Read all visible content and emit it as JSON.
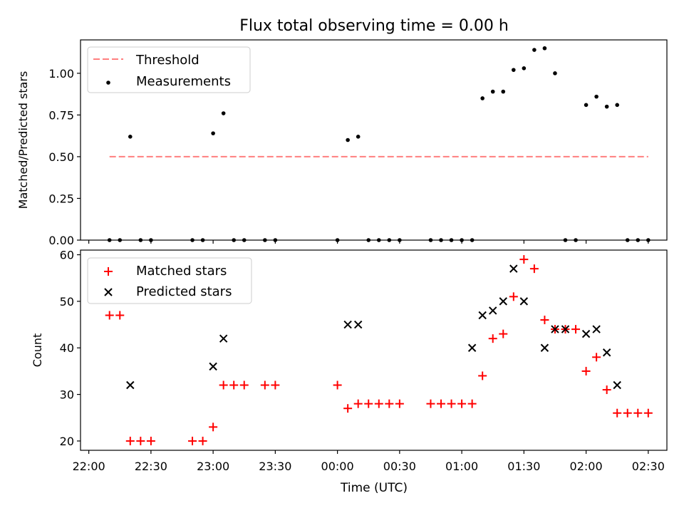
{
  "chart_data": [
    {
      "type": "scatter",
      "title": "Flux total observing time = 0.00 h",
      "xlabel": "",
      "ylabel": "Matched/Predicted stars",
      "x_unit": "minutes since 22:00 UTC",
      "xlim": [
        -4,
        279
      ],
      "ylim": [
        0,
        1.2
      ],
      "yticks": [
        0.0,
        0.25,
        0.5,
        0.75,
        1.0
      ],
      "ytick_labels": [
        "0.00",
        "0.25",
        "0.50",
        "0.75",
        "1.00"
      ],
      "legend_position": "upper left",
      "series": [
        {
          "name": "Threshold",
          "kind": "line",
          "style": "dashed",
          "color": "#ff7f7f",
          "x": [
            10,
            270
          ],
          "y": [
            0.5,
            0.5
          ]
        },
        {
          "name": "Measurements",
          "kind": "scatter",
          "marker": "dot",
          "color": "#000000",
          "x": [
            10,
            15,
            20,
            25,
            30,
            50,
            55,
            60,
            65,
            70,
            75,
            85,
            90,
            120,
            125,
            130,
            135,
            140,
            145,
            150,
            165,
            170,
            175,
            180,
            185,
            190,
            195,
            200,
            205,
            210,
            215,
            220,
            225,
            230,
            235,
            240,
            245,
            250,
            255,
            260,
            265,
            270
          ],
          "y": [
            0,
            0,
            0.62,
            0,
            0,
            0,
            0,
            0.64,
            0.76,
            0,
            0,
            0,
            0,
            0,
            0.6,
            0.62,
            0,
            0,
            0,
            0,
            0,
            0,
            0,
            0,
            0,
            0.85,
            0.89,
            0.89,
            1.02,
            1.03,
            1.14,
            1.15,
            1.0,
            0,
            0,
            0.81,
            0.86,
            0.8,
            0.81,
            0,
            0,
            0
          ]
        }
      ]
    },
    {
      "type": "scatter",
      "title": "",
      "xlabel": "Time (UTC)",
      "ylabel": "Count",
      "x_unit": "minutes since 22:00 UTC",
      "xlim": [
        -4,
        279
      ],
      "ylim": [
        18,
        61
      ],
      "yticks": [
        20,
        30,
        40,
        50,
        60
      ],
      "ytick_labels": [
        "20",
        "30",
        "40",
        "50",
        "60"
      ],
      "xticks": [
        0,
        30,
        60,
        90,
        120,
        150,
        180,
        210,
        240,
        270
      ],
      "xtick_labels": [
        "22:00",
        "22:30",
        "23:00",
        "23:30",
        "00:00",
        "00:30",
        "01:00",
        "01:30",
        "02:00",
        "02:30"
      ],
      "legend_position": "upper left",
      "series": [
        {
          "name": "Matched stars",
          "kind": "scatter",
          "marker": "plus",
          "color": "#ff0000",
          "x": [
            10,
            15,
            20,
            25,
            30,
            50,
            55,
            60,
            65,
            70,
            75,
            85,
            90,
            120,
            125,
            130,
            135,
            140,
            145,
            150,
            165,
            170,
            175,
            180,
            185,
            190,
            195,
            200,
            205,
            210,
            215,
            220,
            225,
            230,
            235,
            240,
            245,
            250,
            255,
            260,
            265,
            270
          ],
          "y": [
            47,
            47,
            20,
            20,
            20,
            20,
            20,
            23,
            32,
            32,
            32,
            32,
            32,
            32,
            27,
            28,
            28,
            28,
            28,
            28,
            28,
            28,
            28,
            28,
            28,
            34,
            42,
            43,
            51,
            59,
            57,
            46,
            44,
            44,
            44,
            35,
            38,
            31,
            26,
            26,
            26,
            26
          ]
        },
        {
          "name": "Predicted stars",
          "kind": "scatter",
          "marker": "x",
          "color": "#000000",
          "x": [
            20,
            60,
            65,
            125,
            130,
            185,
            190,
            195,
            200,
            205,
            210,
            220,
            225,
            230,
            240,
            245,
            250,
            255
          ],
          "y": [
            32,
            36,
            42,
            45,
            45,
            40,
            47,
            48,
            50,
            57,
            50,
            40,
            44,
            44,
            43,
            44,
            39,
            32
          ]
        }
      ]
    }
  ]
}
